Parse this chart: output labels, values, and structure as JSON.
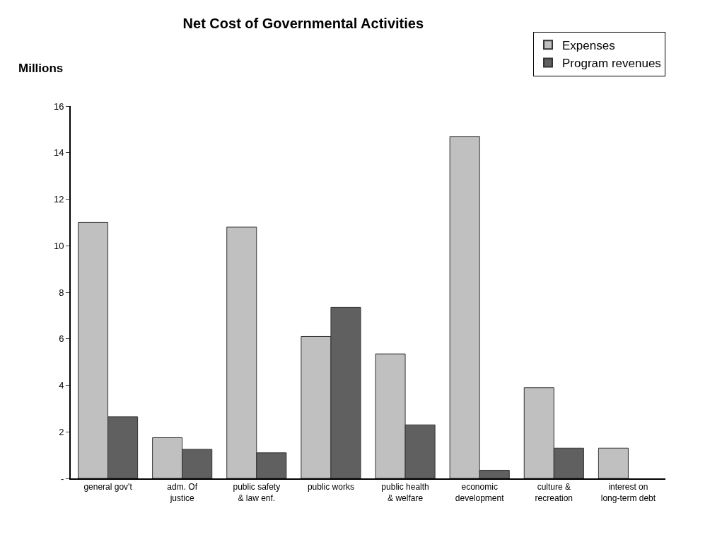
{
  "chart_data": {
    "type": "bar",
    "title": "Net Cost of Governmental Activities",
    "ylabel": "Millions",
    "categories": [
      "general gov't",
      "adm. Of justice",
      "public safety & law enf.",
      "public works",
      "public health & welfare",
      "economic development",
      "culture & recreation",
      "interest on long-term debt"
    ],
    "series": [
      {
        "name": "Expenses",
        "color": "#c0c0c0",
        "values": [
          11.0,
          1.75,
          10.8,
          6.1,
          5.35,
          14.7,
          3.9,
          1.3
        ]
      },
      {
        "name": "Program revenues",
        "color": "#606060",
        "values": [
          2.65,
          1.25,
          1.1,
          7.35,
          2.3,
          0.35,
          1.3,
          null
        ]
      }
    ],
    "ylim": [
      0,
      16
    ],
    "yticks": [
      {
        "value": 0,
        "label": "-"
      },
      2,
      4,
      6,
      8,
      10,
      12,
      14,
      16
    ],
    "legend": "top right"
  }
}
